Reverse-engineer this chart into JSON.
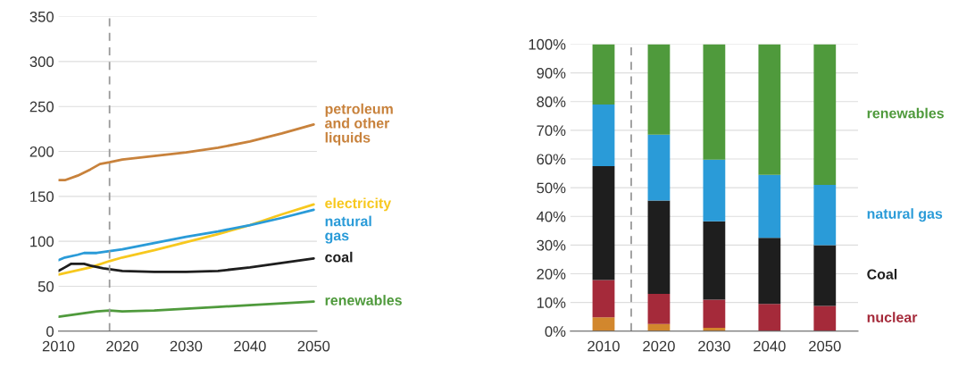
{
  "chart_data": [
    {
      "type": "line",
      "x": [
        2010,
        2015,
        2018,
        2020,
        2025,
        2030,
        2035,
        2040,
        2045,
        2050
      ],
      "xlim": [
        2010,
        2050.5
      ],
      "xticks": [
        2010,
        2020,
        2030,
        2040,
        2050
      ],
      "ylim": [
        0,
        350
      ],
      "yticks": [
        0,
        50,
        100,
        150,
        200,
        250,
        300,
        350
      ],
      "grid": "y",
      "legend": false,
      "ref_lines": [
        {
          "axis": "x",
          "value": 2018,
          "color": "#999999",
          "line_style": "dashed"
        }
      ],
      "series": [
        {
          "name": "petroleum\nand other\nliquids",
          "color": "#c8823c",
          "x": [
            2010,
            2011,
            2013,
            2015,
            2016.5,
            2018,
            2020,
            2025,
            2030,
            2035,
            2040,
            2045,
            2050
          ],
          "values": [
            168,
            168,
            173,
            180,
            186,
            188,
            191,
            195,
            199,
            204,
            211,
            220,
            230
          ]
        },
        {
          "name": "electricity",
          "color": "#f7c81e",
          "values": [
            63,
            71,
            78,
            82,
            90,
            99,
            108,
            118,
            130,
            141
          ]
        },
        {
          "name": "natural\ngas",
          "color": "#2a9bd8",
          "x": [
            2010,
            2011,
            2013,
            2014,
            2016,
            2018,
            2020,
            2025,
            2030,
            2035,
            2040,
            2045,
            2050
          ],
          "values": [
            79,
            82,
            85,
            87,
            87,
            89,
            91,
            98,
            105,
            111,
            118,
            126,
            135
          ]
        },
        {
          "name": "coal",
          "color": "#1e1e1e",
          "x": [
            2010,
            2011,
            2012,
            2014,
            2015,
            2017,
            2020,
            2025,
            2030,
            2035,
            2040,
            2045,
            2050
          ],
          "values": [
            67,
            71,
            75,
            75,
            73,
            70,
            67,
            66,
            66,
            67,
            71,
            76,
            81
          ]
        },
        {
          "name": "renewables",
          "color": "#4f9a3c",
          "x": [
            2010,
            2013,
            2016,
            2018,
            2020,
            2025,
            2030,
            2035,
            2040,
            2045,
            2050
          ],
          "values": [
            16,
            19,
            22,
            23,
            22,
            23,
            25,
            27,
            29,
            31,
            33
          ]
        }
      ]
    },
    {
      "type": "bar",
      "stacked": true,
      "x": [
        2010,
        2020,
        2030,
        2040,
        2050
      ],
      "xlim": [
        2004,
        2056
      ],
      "xticks": [
        2010,
        2020,
        2030,
        2040,
        2050
      ],
      "ylim": [
        0,
        100
      ],
      "grid": "y",
      "legend": false,
      "yticks": [
        {
          "value": 0,
          "label": "0%"
        },
        {
          "value": 10,
          "label": "10%"
        },
        {
          "value": 20,
          "label": "20%"
        },
        {
          "value": 30,
          "label": "30%"
        },
        {
          "value": 40,
          "label": "40%"
        },
        {
          "value": 50,
          "label": "50%"
        },
        {
          "value": 60,
          "label": "60%"
        },
        {
          "value": 70,
          "label": "70%"
        },
        {
          "value": 80,
          "label": "80%"
        },
        {
          "value": 90,
          "label": "90%"
        },
        {
          "value": 100,
          "label": "100%"
        }
      ],
      "ref_lines": [
        {
          "axis": "x",
          "value": 2015,
          "color": "#999999",
          "line_style": "dashed"
        }
      ],
      "series": [
        {
          "color": "#d2872d",
          "values": [
            4.8,
            2.5,
            1.2,
            null,
            null
          ]
        },
        {
          "name": "nuclear",
          "color": "#a52a3a",
          "values": [
            13,
            10.5,
            9.8,
            9.5,
            8.8
          ]
        },
        {
          "name": "Coal",
          "color": "#1e1e1e",
          "values": [
            39.7,
            32.5,
            27.3,
            23,
            21.2
          ]
        },
        {
          "name": "natural gas",
          "color": "#2a9bd8",
          "values": [
            21.5,
            23,
            21.5,
            22,
            21
          ]
        },
        {
          "name": "renewables",
          "color": "#4f9a3c",
          "values": [
            21,
            31.5,
            40.2,
            45.5,
            49
          ]
        }
      ]
    }
  ]
}
